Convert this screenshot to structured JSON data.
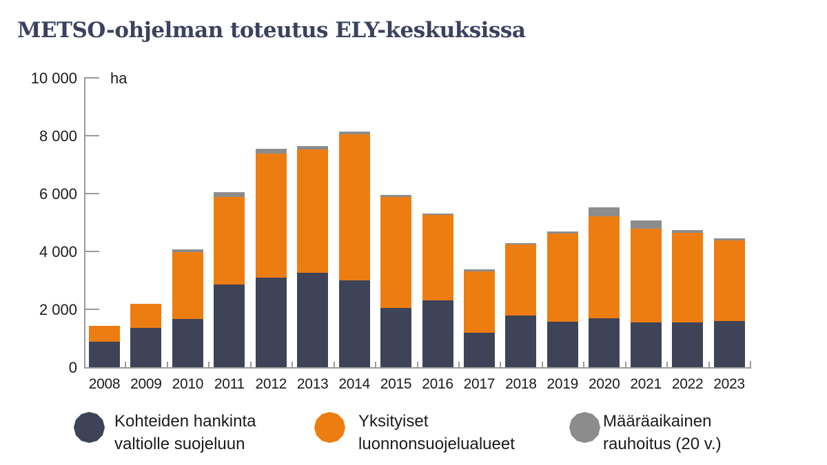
{
  "title": "METSO-ohjelman toteutus ELY-keskuksissa",
  "colors": {
    "navy": "#3F4358",
    "orange": "#EE7D11",
    "gray": "#8C8C8C",
    "axis": "#9a9a9a",
    "title": "#3c4160"
  },
  "y_axis": {
    "unit": "ha",
    "tick_labels": [
      "10 000",
      "8 000",
      "6 000",
      "4 000",
      "2 000",
      "0"
    ],
    "tick_values": [
      10000,
      8000,
      6000,
      4000,
      2000,
      0
    ]
  },
  "chart_data": {
    "type": "bar",
    "stacked": true,
    "title": "METSO-ohjelman toteutus ELY-keskuksissa",
    "xlabel": "",
    "ylabel": "ha",
    "ylim": [
      0,
      10000
    ],
    "grid": false,
    "legend_position": "bottom",
    "categories": [
      "2008",
      "2009",
      "2010",
      "2011",
      "2012",
      "2013",
      "2014",
      "2015",
      "2016",
      "2017",
      "2018",
      "2019",
      "2020",
      "2021",
      "2022",
      "2023"
    ],
    "series": [
      {
        "name": "Kohteiden hankinta valtiolle suojeluun",
        "color": "#3F4358",
        "values": [
          870,
          1360,
          1660,
          2850,
          3100,
          3260,
          3010,
          2040,
          2320,
          1190,
          1790,
          1570,
          1690,
          1550,
          1550,
          1600
        ]
      },
      {
        "name": "Yksityiset luonnonsuojelualueet",
        "color": "#EE7D11",
        "values": [
          570,
          840,
          2310,
          3030,
          4270,
          4260,
          5040,
          3830,
          2940,
          2120,
          2440,
          3060,
          3530,
          3240,
          3100,
          2770
        ]
      },
      {
        "name": "Määräaikainen rauhoitus (20 v.)",
        "color": "#8C8C8C",
        "values": [
          0,
          0,
          100,
          170,
          170,
          130,
          100,
          80,
          60,
          60,
          50,
          60,
          310,
          290,
          80,
          80
        ]
      }
    ]
  },
  "legend": {
    "items": [
      {
        "line1": "Kohteiden hankinta",
        "line2": "valtiolle suojeluun",
        "color": "#3F4358"
      },
      {
        "line1": "Yksityiset",
        "line2": "luonnonsuojelualueet",
        "color": "#EE7D11"
      },
      {
        "line1": "Määräaikainen",
        "line2": "rauhoitus (20 v.)",
        "color": "#8C8C8C"
      }
    ]
  }
}
